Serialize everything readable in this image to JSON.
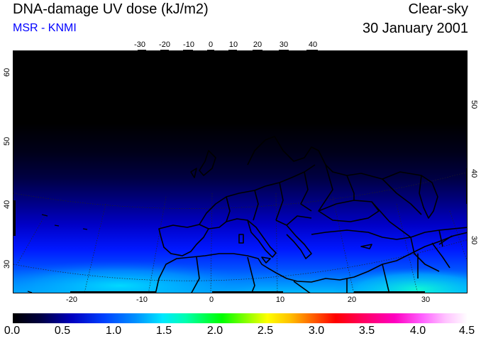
{
  "header": {
    "title": "DNA-damage UV dose (kJ/m2)",
    "source": "MSR - KNMI",
    "sky_condition": "Clear-sky",
    "date": "30 January 2001"
  },
  "map": {
    "top_lon_ticks": [
      "-30",
      "-20",
      "-10",
      "0",
      "10",
      "20",
      "30",
      "40"
    ],
    "bottom_lon_ticks": [
      "-20",
      "-10",
      "0",
      "10",
      "20",
      "30"
    ],
    "left_lat_ticks": [
      "60",
      "50",
      "40",
      "30"
    ],
    "right_lat_ticks": [
      "50",
      "40",
      "30"
    ]
  },
  "colorbar": {
    "labels": [
      "0.0",
      "0.5",
      "1.0",
      "1.5",
      "2.0",
      "2.5",
      "3.0",
      "3.5",
      "4.0",
      "4.5"
    ]
  }
}
